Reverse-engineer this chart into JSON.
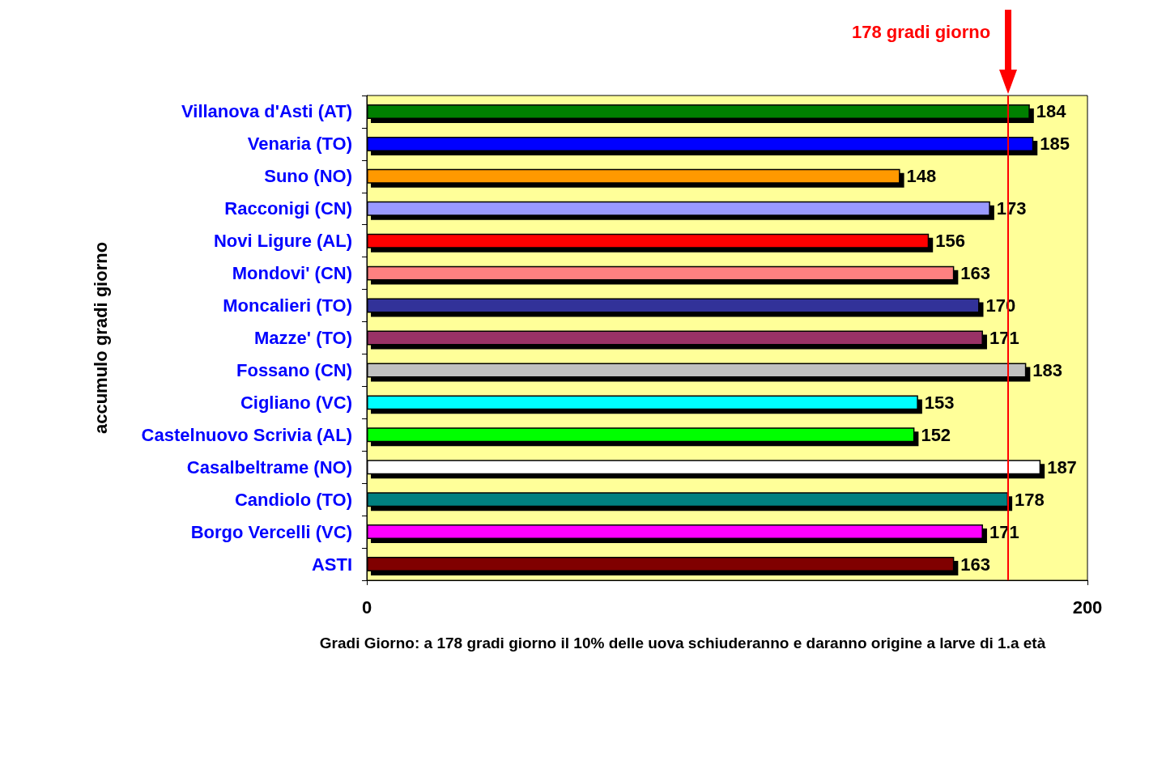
{
  "chart_data": {
    "type": "bar",
    "orientation": "horizontal",
    "xlabel": "Gradi Giorno: a 178 gradi giorno il 10% delle uova schiuderanno e daranno origine a larve di 1.a età",
    "ylabel": "accumulo gradi giorno",
    "categories": [
      "Villanova d'Asti (AT)",
      "Venaria (TO)",
      "Suno (NO)",
      "Racconigi (CN)",
      "Novi Ligure (AL)",
      "Mondovi' (CN)",
      "Moncalieri (TO)",
      "Mazze' (TO)",
      "Fossano (CN)",
      "Cigliano (VC)",
      "Castelnuovo Scrivia (AL)",
      "Casalbeltrame (NO)",
      "Candiolo (TO)",
      "Borgo Vercelli (VC)",
      "ASTI"
    ],
    "values": [
      184,
      185,
      148,
      173,
      156,
      163,
      170,
      171,
      183,
      153,
      152,
      187,
      178,
      171,
      163
    ],
    "colors": [
      "#008000",
      "#0000ff",
      "#ff9900",
      "#9999ff",
      "#ff0000",
      "#ff8080",
      "#333399",
      "#993366",
      "#c0c0c0",
      "#00ffff",
      "#00ff00",
      "#ffffff",
      "#008080",
      "#ff00ff",
      "#800000"
    ],
    "xlim": [
      0,
      200
    ],
    "xticks": [
      0,
      200
    ],
    "grid": false,
    "data_labels": true,
    "ref_lines": [
      {
        "axis": "x",
        "value": 178,
        "label": "178 gradi giorno",
        "color": "#ff0000",
        "line_style": "solid"
      }
    ]
  }
}
